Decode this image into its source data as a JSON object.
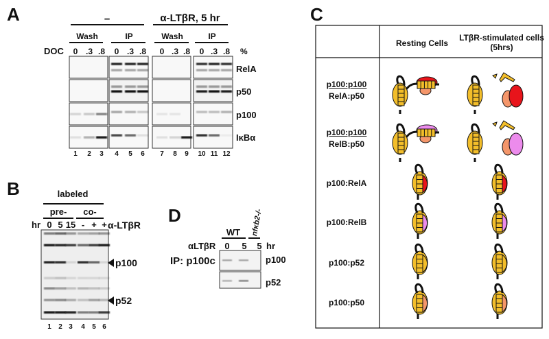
{
  "panelA": {
    "label": "A",
    "group_neg": "–",
    "group_stim": "α-LTβR, 5 hr",
    "subgroups": [
      "Wash",
      "IP",
      "Wash",
      "IP"
    ],
    "doc_label": "DOC",
    "doc_values": [
      "0",
      ".3",
      ".8",
      "0",
      ".3",
      ".8",
      "0",
      ".3",
      ".8",
      "0",
      ".3",
      ".8"
    ],
    "doc_unit": "%",
    "rows": [
      "RelA",
      "p50",
      "p100",
      "IκBα"
    ],
    "lanes": [
      "1",
      "2",
      "3",
      "4",
      "5",
      "6",
      "7",
      "8",
      "9",
      "10",
      "11",
      "12"
    ]
  },
  "panelB": {
    "label": "B",
    "labeled": "labeled",
    "pre": "pre-",
    "co": "co-",
    "hr_label": "hr",
    "hr_values": [
      "0",
      "5",
      "15",
      "-",
      "+",
      "+"
    ],
    "treatment": "α-LTβR",
    "markers": [
      "p100",
      "p52"
    ],
    "lanes": [
      "1",
      "2",
      "3",
      "4",
      "5",
      "6"
    ]
  },
  "panelD": {
    "label": "D",
    "wt": "WT",
    "ko": "nfκb2-/-",
    "treatment": "αLTβR",
    "times": [
      "0",
      "5",
      "5"
    ],
    "time_unit": "hr",
    "ip": "IP: p100c",
    "rows": [
      "p100",
      "p52"
    ]
  },
  "panelC": {
    "label": "C",
    "col_headers": [
      "Resting Cells",
      "LTβR-stimulated cells (5hrs)"
    ],
    "rows": [
      {
        "top": "p100:p100",
        "bottom": "RelA:p50"
      },
      {
        "top": "p100:p100",
        "bottom": "RelB:p50"
      },
      {
        "top": "",
        "bottom": "p100:RelA"
      },
      {
        "top": "",
        "bottom": "p100:RelB"
      },
      {
        "top": "",
        "bottom": "p100:p52"
      },
      {
        "top": "",
        "bottom": "p100:p50"
      }
    ],
    "colors": {
      "p100": "#F3BE2A",
      "RelA": "#E8141B",
      "p50": "#F4966A",
      "RelB": "#EC8BEC",
      "outline": "#111111"
    }
  }
}
